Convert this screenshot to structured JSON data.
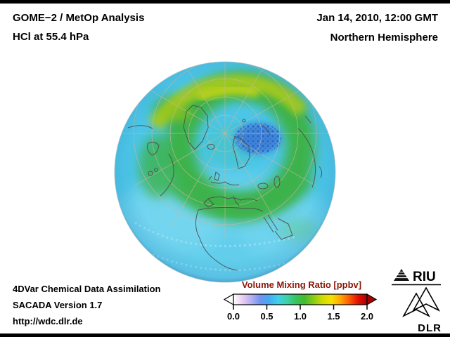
{
  "frame": {
    "background": "#ffffff",
    "border_bar_color": "#000000"
  },
  "header": {
    "title_line1": "GOME−2 / MetOp Analysis",
    "title_line2": "HCl at 55.4 hPa",
    "datetime": "Jan 14, 2010, 12:00 GMT",
    "region": "Northern Hemisphere"
  },
  "globe": {
    "base_color": "#4cc6e8",
    "green_ring_color": "#3cb24b",
    "yellow_arc_color": "#a9ca1d",
    "vortex_patch_color": "#3f86d8",
    "coastline_color": "#4d4d4d",
    "graticule_color": "#c7b89b"
  },
  "footer": {
    "line1": "4DVar Chemical Data Assimilation",
    "line2": "SACADA Version 1.7",
    "line3": "http://wdc.dlr.de"
  },
  "colorbar": {
    "title": "Volume Mixing Ratio [ppbv]",
    "title_color": "#8b1607",
    "ticks": [
      "0.0",
      "0.5",
      "1.0",
      "1.5",
      "2.0"
    ],
    "range": [
      0.0,
      2.0
    ],
    "left_arrow_color": "#ffffff",
    "right_arrow_color": "#a80000",
    "gradient_colors": [
      "#ffffff",
      "#eccdf2",
      "#b4aff0",
      "#6f93f2",
      "#44aaf0",
      "#3fd0e8",
      "#3fd0a8",
      "#38c45f",
      "#42bb2d",
      "#8bcb16",
      "#cfdc00",
      "#f6e000",
      "#ffa800",
      "#ff5a00",
      "#e31000",
      "#a80000"
    ]
  },
  "logos": {
    "riu_label": "RIU",
    "dlr_label": "DLR"
  }
}
